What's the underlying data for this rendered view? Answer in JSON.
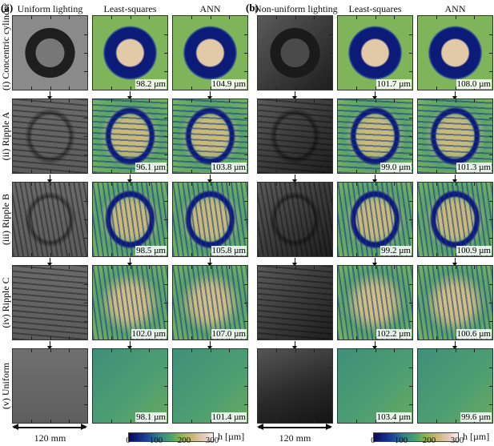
{
  "panel_labels": {
    "a": "(a)",
    "b": "(b)"
  },
  "column_headers": {
    "a": [
      "Uniform lighting",
      "Least-squares",
      "ANN"
    ],
    "b": [
      "Non-uniform lighting",
      "Least-squares",
      "ANN"
    ]
  },
  "row_labels": [
    "(i) Concentric cylinder",
    "(ii) Ripple A",
    "(iii) Ripple B",
    "(iv) Ripple C",
    "(v) Uniform"
  ],
  "values": {
    "a": [
      [
        "98.2 µm",
        "104.9 µm"
      ],
      [
        "96.1 µm",
        "103.8 µm"
      ],
      [
        "98.5 µm",
        "105.8 µm"
      ],
      [
        "102.0 µm",
        "107.0 µm"
      ],
      [
        "98.1 µm",
        "101.4 µm"
      ]
    ],
    "b": [
      [
        "101.7 µm",
        "108.0 µm"
      ],
      [
        "99.0 µm",
        "101.3 µm"
      ],
      [
        "99.2 µm",
        "100.9 µm"
      ],
      [
        "102.2 µm",
        "100.6 µm"
      ],
      [
        "103.4 µm",
        "99.6 µm"
      ]
    ]
  },
  "scale_bar": "120 mm",
  "colorbar": {
    "label": "h [µm]",
    "ticks": [
      "0",
      "100",
      "200",
      "300"
    ],
    "range": [
      0,
      300
    ],
    "colors": [
      "#08085e",
      "#2e7f8e",
      "#8fb54a",
      "#c9b773",
      "#fbf2f0"
    ]
  }
}
